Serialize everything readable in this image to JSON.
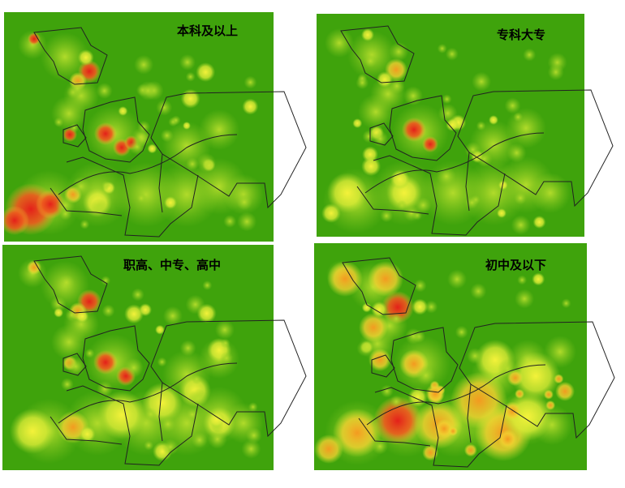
{
  "panels": [
    {
      "label": "本科及以上"
    },
    {
      "label": "专科大专"
    },
    {
      "label": "职高、中专、高中"
    },
    {
      "label": "初中及以下"
    }
  ]
}
